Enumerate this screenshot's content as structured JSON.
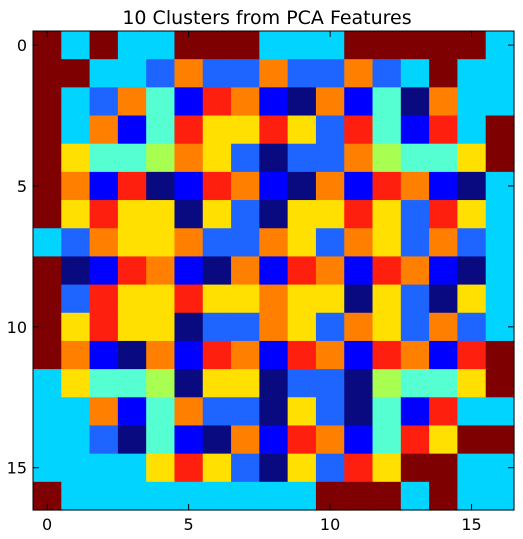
{
  "chart_data": {
    "type": "heatmap",
    "title": "10 Clusters from PCA Features",
    "xlabel": "",
    "ylabel": "",
    "colormap": "jet",
    "n_clusters": 10,
    "x_ticks": [
      0,
      5,
      10,
      15
    ],
    "y_ticks": [
      0,
      5,
      10,
      15
    ],
    "x_tick_labels": [
      "0",
      "5",
      "10",
      "15"
    ],
    "y_tick_labels": [
      "0",
      "5",
      "10",
      "15"
    ],
    "xlim": [
      -0.5,
      16.5
    ],
    "ylim": [
      16.5,
      -0.5
    ],
    "grid": false,
    "cluster_colors": [
      "#7f0000",
      "#00d4ff",
      "#0a0a80",
      "#0000ff",
      "#1e64ff",
      "#56ffd2",
      "#a8ff52",
      "#ffe000",
      "#ff7f00",
      "#ff1f0f"
    ],
    "values": [
      [
        0,
        1,
        0,
        1,
        1,
        0,
        0,
        0,
        1,
        1,
        1,
        0,
        0,
        0,
        0,
        0,
        1
      ],
      [
        0,
        0,
        1,
        1,
        4,
        8,
        4,
        4,
        8,
        4,
        4,
        8,
        4,
        1,
        0,
        1,
        1
      ],
      [
        0,
        1,
        4,
        8,
        5,
        3,
        9,
        8,
        3,
        2,
        8,
        3,
        5,
        2,
        8,
        1,
        1
      ],
      [
        0,
        1,
        8,
        3,
        5,
        9,
        7,
        7,
        9,
        7,
        4,
        9,
        5,
        3,
        9,
        1,
        0
      ],
      [
        0,
        7,
        5,
        5,
        6,
        8,
        7,
        4,
        2,
        4,
        4,
        8,
        6,
        5,
        5,
        7,
        0
      ],
      [
        0,
        8,
        3,
        9,
        2,
        3,
        9,
        8,
        3,
        2,
        8,
        3,
        9,
        8,
        3,
        2,
        1
      ],
      [
        0,
        7,
        9,
        7,
        7,
        2,
        7,
        4,
        2,
        7,
        7,
        9,
        7,
        4,
        9,
        7,
        1
      ],
      [
        1,
        4,
        8,
        7,
        7,
        8,
        4,
        4,
        8,
        7,
        4,
        8,
        7,
        4,
        8,
        4,
        1
      ],
      [
        0,
        2,
        3,
        9,
        8,
        3,
        2,
        8,
        3,
        9,
        8,
        3,
        9,
        8,
        3,
        2,
        1
      ],
      [
        0,
        4,
        9,
        7,
        7,
        9,
        7,
        7,
        8,
        7,
        7,
        2,
        7,
        4,
        2,
        7,
        1
      ],
      [
        0,
        7,
        9,
        7,
        7,
        2,
        4,
        4,
        8,
        7,
        4,
        8,
        7,
        4,
        8,
        4,
        1
      ],
      [
        0,
        8,
        3,
        2,
        8,
        3,
        9,
        8,
        3,
        9,
        8,
        3,
        9,
        8,
        3,
        9,
        0
      ],
      [
        1,
        7,
        5,
        5,
        6,
        2,
        7,
        7,
        2,
        4,
        4,
        2,
        6,
        5,
        5,
        7,
        0
      ],
      [
        1,
        1,
        8,
        3,
        5,
        8,
        4,
        4,
        2,
        7,
        4,
        2,
        5,
        3,
        9,
        1,
        1
      ],
      [
        1,
        1,
        4,
        2,
        5,
        3,
        2,
        8,
        3,
        9,
        8,
        3,
        5,
        9,
        7,
        0,
        0
      ],
      [
        1,
        1,
        1,
        1,
        7,
        9,
        7,
        4,
        2,
        7,
        4,
        9,
        7,
        0,
        0,
        1,
        1
      ],
      [
        0,
        1,
        1,
        1,
        1,
        1,
        1,
        1,
        1,
        1,
        0,
        0,
        0,
        1,
        0,
        1,
        1
      ]
    ]
  }
}
